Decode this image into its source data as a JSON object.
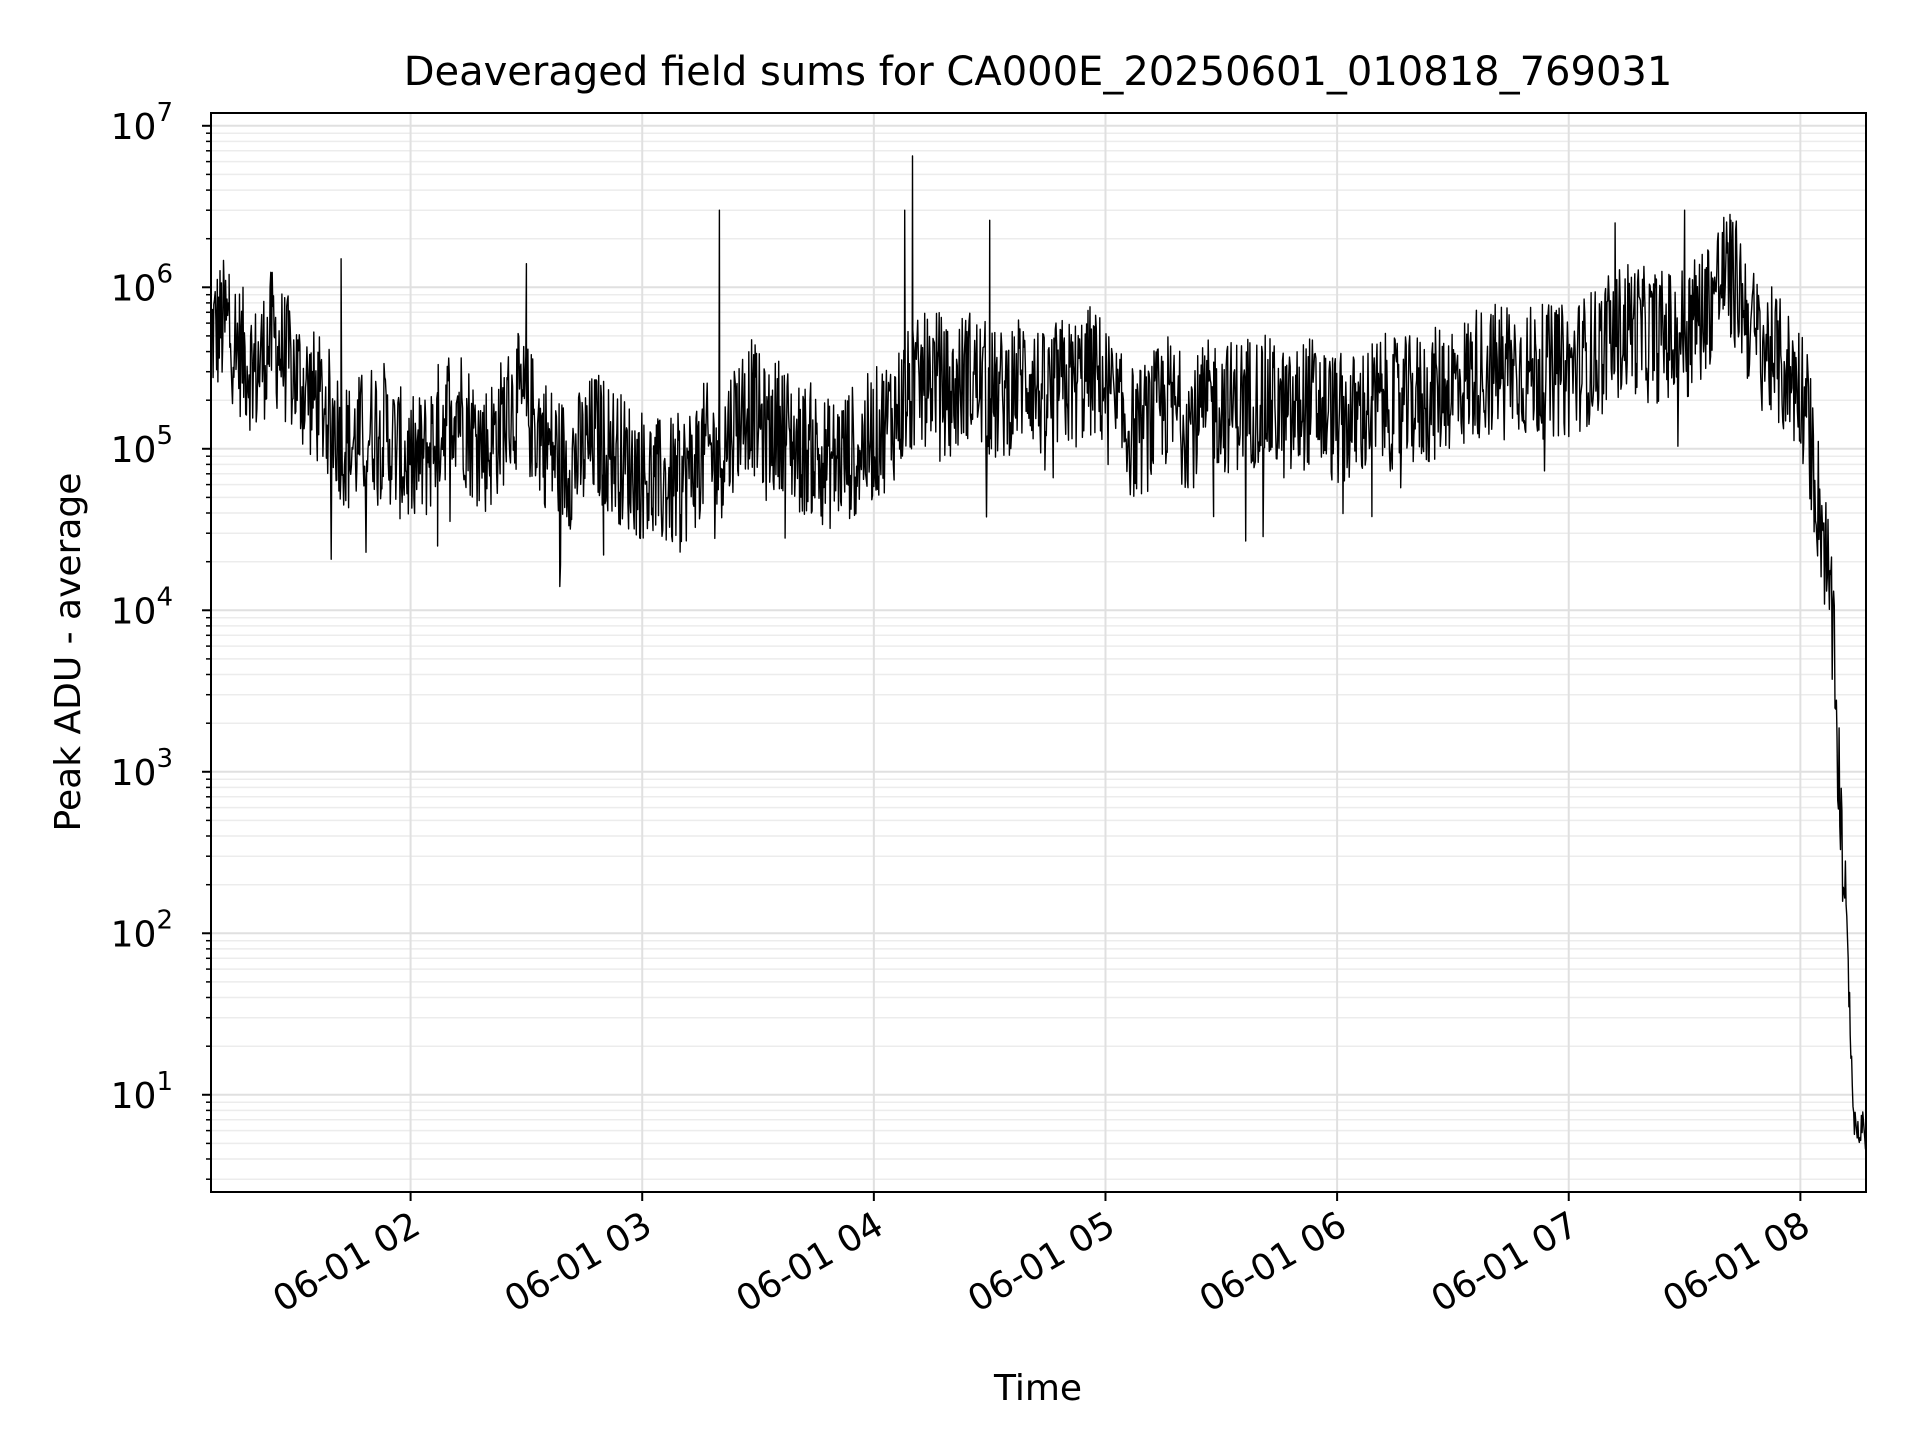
{
  "chart_data": {
    "type": "line",
    "title": "Deaveraged field sums for CA000E_20250601_010818_769031",
    "xlabel": "Time",
    "ylabel": "Peak ADU - average",
    "yscale": "log",
    "ylim": [
      2.5,
      12000000
    ],
    "xlim": [
      "2025-06-01 01:08:18",
      "2025-06-01 08:17:00"
    ],
    "grid": true,
    "legend": "none",
    "line_color": "#000000",
    "x_ticks": [
      {
        "value": "2025-06-01 02:00",
        "label": "06-01 02"
      },
      {
        "value": "2025-06-01 03:00",
        "label": "06-01 03"
      },
      {
        "value": "2025-06-01 04:00",
        "label": "06-01 04"
      },
      {
        "value": "2025-06-01 05:00",
        "label": "06-01 05"
      },
      {
        "value": "2025-06-01 06:00",
        "label": "06-01 06"
      },
      {
        "value": "2025-06-01 07:00",
        "label": "06-01 07"
      },
      {
        "value": "2025-06-01 08:00",
        "label": "06-01 08"
      }
    ],
    "y_ticks": [
      {
        "value": 10,
        "base": "10",
        "exp": "1"
      },
      {
        "value": 100,
        "base": "10",
        "exp": "2"
      },
      {
        "value": 1000,
        "base": "10",
        "exp": "3"
      },
      {
        "value": 10000,
        "base": "10",
        "exp": "4"
      },
      {
        "value": 100000,
        "base": "10",
        "exp": "5"
      },
      {
        "value": 1000000,
        "base": "10",
        "exp": "6"
      },
      {
        "value": 10000000,
        "base": "10",
        "exp": "7"
      }
    ],
    "series": [
      {
        "x": [
          "01:08",
          "01:12",
          "01:16",
          "01:20",
          "01:24",
          "01:28",
          "01:32",
          "01:36",
          "01:40",
          "01:44",
          "01:48",
          "01:52",
          "01:56",
          "02:00",
          "02:04",
          "02:08",
          "02:12",
          "02:16",
          "02:20",
          "02:24",
          "02:28",
          "02:32",
          "02:36",
          "02:40",
          "02:44",
          "02:48",
          "02:52",
          "02:56",
          "03:00",
          "03:04",
          "03:08",
          "03:12",
          "03:16",
          "03:20",
          "03:24",
          "03:28",
          "03:32",
          "03:36",
          "03:40",
          "03:44",
          "03:48",
          "03:52",
          "03:56",
          "04:00",
          "04:04",
          "04:08",
          "04:12",
          "04:16",
          "04:20",
          "04:24",
          "04:28",
          "04:32",
          "04:36",
          "04:40",
          "04:44",
          "04:48",
          "04:52",
          "04:56",
          "05:00",
          "05:04",
          "05:08",
          "05:12",
          "05:16",
          "05:20",
          "05:24",
          "05:28",
          "05:32",
          "05:36",
          "05:40",
          "05:44",
          "05:48",
          "05:52",
          "05:56",
          "06:00",
          "06:04",
          "06:08",
          "06:12",
          "06:16",
          "06:20",
          "06:24",
          "06:28",
          "06:32",
          "06:36",
          "06:40",
          "06:44",
          "06:48",
          "06:52",
          "06:56",
          "07:00",
          "07:04",
          "07:08",
          "07:12",
          "07:16",
          "07:20",
          "07:24",
          "07:28",
          "07:32",
          "07:36",
          "07:40",
          "07:44",
          "07:48",
          "07:52",
          "07:56",
          "08:00",
          "08:02",
          "08:04",
          "08:06",
          "08:08",
          "08:10",
          "08:12",
          "08:14",
          "08:16"
        ],
        "y": [
          500000,
          600000,
          400000,
          300000,
          500000,
          350000,
          250000,
          200000,
          150000,
          100000,
          120000,
          150000,
          100000,
          80000,
          90000,
          150000,
          200000,
          120000,
          100000,
          150000,
          200000,
          150000,
          100000,
          80000,
          90000,
          120000,
          100000,
          80000,
          70000,
          60000,
          60000,
          70000,
          100000,
          90000,
          150000,
          200000,
          120000,
          150000,
          100000,
          100000,
          80000,
          90000,
          100000,
          120000,
          150000,
          200000,
          250000,
          300000,
          200000,
          300000,
          250000,
          200000,
          250000,
          300000,
          200000,
          250000,
          250000,
          300000,
          250000,
          150000,
          120000,
          150000,
          200000,
          150000,
          150000,
          200000,
          180000,
          200000,
          200000,
          180000,
          150000,
          200000,
          180000,
          150000,
          150000,
          180000,
          200000,
          180000,
          200000,
          200000,
          250000,
          250000,
          300000,
          300000,
          350000,
          300000,
          300000,
          300000,
          300000,
          350000,
          400000,
          500000,
          600000,
          500000,
          500000,
          500000,
          600000,
          800000,
          1200000,
          1000000,
          500000,
          400000,
          300000,
          250000,
          150000,
          60000,
          30000,
          10000,
          1000,
          100,
          6,
          6
        ]
      }
    ],
    "spikes": [
      {
        "x": "01:13",
        "y": 1200000
      },
      {
        "x": "01:42",
        "y": 1500000
      },
      {
        "x": "02:30",
        "y": 1400000
      },
      {
        "x": "03:20",
        "y": 3000000
      },
      {
        "x": "04:08",
        "y": 3000000
      },
      {
        "x": "04:10",
        "y": 6500000
      },
      {
        "x": "04:30",
        "y": 2600000
      },
      {
        "x": "07:12",
        "y": 2500000
      },
      {
        "x": "07:30",
        "y": 3000000
      },
      {
        "x": "07:42",
        "y": 2600000
      }
    ],
    "dips": [
      {
        "x": "02:07",
        "y": 25000
      },
      {
        "x": "02:50",
        "y": 22000
      },
      {
        "x": "03:37",
        "y": 28000
      },
      {
        "x": "05:28",
        "y": 38000
      },
      {
        "x": "06:09",
        "y": 38000
      }
    ]
  }
}
